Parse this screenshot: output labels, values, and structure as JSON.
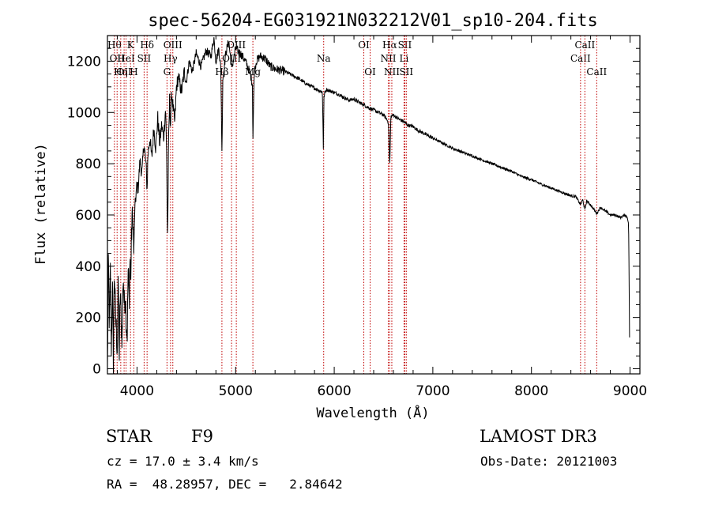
{
  "chart_data": {
    "type": "line",
    "title": "spec-56204-EG031921N032212V01_sp10-204.fits",
    "xlabel": "Wavelength (Å)",
    "ylabel": "Flux (relative)",
    "xlim": [
      3700,
      9100
    ],
    "ylim": [
      -20,
      1300
    ],
    "xticks": [
      4000,
      5000,
      6000,
      7000,
      8000,
      9000
    ],
    "yticks": [
      0,
      200,
      400,
      600,
      800,
      1000,
      1200
    ],
    "series": [
      {
        "name": "flux",
        "x": [
          3700,
          3710,
          3720,
          3730,
          3740,
          3750,
          3760,
          3770,
          3780,
          3790,
          3800,
          3810,
          3820,
          3830,
          3840,
          3850,
          3860,
          3870,
          3880,
          3890,
          3900,
          3910,
          3920,
          3930,
          3934,
          3940,
          3950,
          3960,
          3968,
          3975,
          3990,
          4000,
          4010,
          4030,
          4050,
          4070,
          4090,
          4102,
          4110,
          4130,
          4150,
          4170,
          4190,
          4210,
          4230,
          4250,
          4270,
          4290,
          4300,
          4310,
          4320,
          4330,
          4340,
          4350,
          4370,
          4383,
          4400,
          4420,
          4450,
          4480,
          4500,
          4530,
          4560,
          4600,
          4650,
          4700,
          4750,
          4780,
          4800,
          4830,
          4850,
          4861,
          4870,
          4900,
          4930,
          4960,
          5000,
          5050,
          5100,
          5150,
          5170,
          5175,
          5183,
          5190,
          5210,
          5250,
          5300,
          5350,
          5400,
          5450,
          5500,
          5550,
          5600,
          5650,
          5700,
          5750,
          5800,
          5850,
          5880,
          5890,
          5896,
          5905,
          5920,
          5950,
          6000,
          6050,
          6100,
          6150,
          6200,
          6250,
          6300,
          6350,
          6400,
          6450,
          6500,
          6530,
          6550,
          6563,
          6575,
          6600,
          6650,
          6700,
          6750,
          6800,
          6850,
          6900,
          6950,
          7000,
          7100,
          7200,
          7300,
          7400,
          7500,
          7600,
          7700,
          7800,
          7900,
          8000,
          8100,
          8200,
          8300,
          8400,
          8450,
          8498,
          8520,
          8542,
          8560,
          8600,
          8662,
          8700,
          8750,
          8800,
          8850,
          8900,
          8950,
          8975,
          8985,
          8990,
          8995
        ],
        "values": [
          0,
          420,
          150,
          380,
          60,
          330,
          30,
          400,
          220,
          150,
          80,
          350,
          40,
          310,
          180,
          120,
          380,
          240,
          300,
          200,
          120,
          380,
          260,
          460,
          330,
          430,
          620,
          560,
          440,
          600,
          680,
          720,
          700,
          810,
          760,
          880,
          800,
          700,
          830,
          900,
          820,
          940,
          860,
          980,
          880,
          950,
          900,
          1020,
          840,
          500,
          880,
          1050,
          940,
          1080,
          1000,
          960,
          1100,
          1140,
          1080,
          1160,
          1120,
          1200,
          1160,
          1230,
          1180,
          1240,
          1220,
          1290,
          1200,
          1250,
          1170,
          840,
          1130,
          1230,
          1280,
          1170,
          1250,
          1230,
          1200,
          1150,
          1110,
          880,
          1060,
          1160,
          1200,
          1220,
          1210,
          1180,
          1170,
          1165,
          1160,
          1150,
          1140,
          1130,
          1115,
          1105,
          1095,
          1085,
          1080,
          860,
          1060,
          1075,
          1090,
          1085,
          1078,
          1070,
          1058,
          1048,
          1052,
          1040,
          1030,
          1018,
          1010,
          1000,
          990,
          975,
          960,
          790,
          985,
          990,
          975,
          965,
          950,
          945,
          930,
          920,
          910,
          900,
          880,
          860,
          845,
          830,
          815,
          800,
          785,
          770,
          750,
          738,
          720,
          705,
          690,
          675,
          672,
          640,
          660,
          620,
          655,
          640,
          605,
          630,
          615,
          600,
          600,
          590,
          600,
          590,
          560,
          400,
          120
        ]
      }
    ],
    "lines": [
      {
        "wave": 3771,
        "label": "Hθ",
        "row": 0
      },
      {
        "wave": 3798,
        "label": "OII",
        "row": 1
      },
      {
        "wave": 3835,
        "label": "Hη",
        "row": 2
      },
      {
        "wave": 3869,
        "label": "OII",
        "row": 2
      },
      {
        "wave": 3889,
        "label": "HeI",
        "row": 1
      },
      {
        "wave": 3934,
        "label": "K",
        "row": 0
      },
      {
        "wave": 3968,
        "label": "H",
        "row": 2
      },
      {
        "wave": 4072,
        "label": "SII",
        "row": 1
      },
      {
        "wave": 4102,
        "label": "Hδ",
        "row": 0
      },
      {
        "wave": 4304,
        "label": "G",
        "row": 2
      },
      {
        "wave": 4340,
        "label": "Hγ",
        "row": 1
      },
      {
        "wave": 4363,
        "label": "OIII",
        "row": 0
      },
      {
        "wave": 4861,
        "label": "Hβ",
        "row": 2
      },
      {
        "wave": 4959,
        "label": "OIII",
        "row": 1
      },
      {
        "wave": 5007,
        "label": "OIII",
        "row": 0
      },
      {
        "wave": 5175,
        "label": "Mg",
        "row": 2
      },
      {
        "wave": 5893,
        "label": "Na",
        "row": 1
      },
      {
        "wave": 6300,
        "label": "OI",
        "row": 0
      },
      {
        "wave": 6364,
        "label": "OI",
        "row": 2
      },
      {
        "wave": 6548,
        "label": "NII",
        "row": 1
      },
      {
        "wave": 6563,
        "label": "Hα",
        "row": 0
      },
      {
        "wave": 6584,
        "label": "NII",
        "row": 2
      },
      {
        "wave": 6708,
        "label": "Li",
        "row": 1
      },
      {
        "wave": 6716,
        "label": "SII",
        "row": 0
      },
      {
        "wave": 6731,
        "label": "SII",
        "row": 2
      },
      {
        "wave": 8498,
        "label": "CaII",
        "row": 1
      },
      {
        "wave": 8542,
        "label": "CaII",
        "row": 0
      },
      {
        "wave": 8662,
        "label": "CaII",
        "row": 2
      }
    ]
  },
  "info": {
    "class": "STAR",
    "subclass": "F9",
    "survey": "LAMOST DR3",
    "cz": "cz = 17.0 ± 3.4 km/s",
    "obs_date": "Obs-Date: 20121003",
    "coords": "RA =  48.28957, DEC =   2.84642"
  },
  "colors": {
    "axis": "#000000",
    "spectrum": "#000000",
    "lines": "#c00000",
    "background": "#ffffff"
  }
}
